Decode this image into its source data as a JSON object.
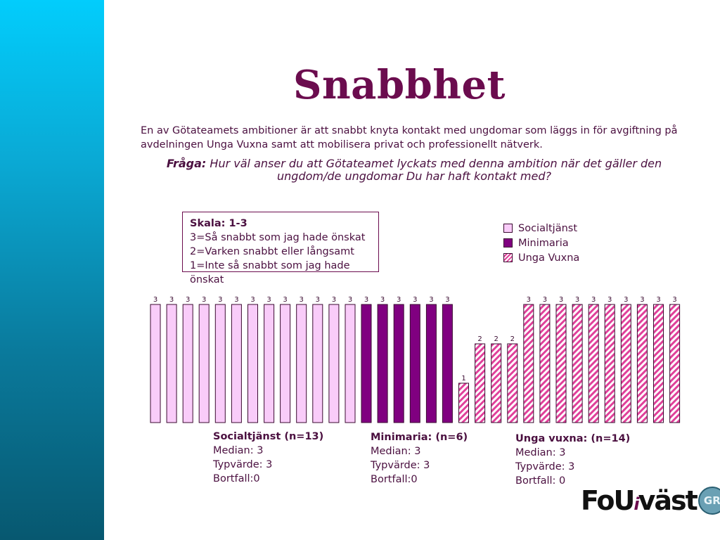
{
  "slide": {
    "title": "Snabbhet",
    "intro": "En av Götateamets ambitioner är att snabbt knyta kontakt med ungdomar som läggs in för avgiftning på avdelningen Unga Vuxna samt att mobilisera privat och professionellt nätverk.",
    "question_label": "Fråga:",
    "question_text": "Hur väl anser du att Götateamet lyckats med denna ambition när det gäller den ungdom/de ungdomar Du har haft kontakt med?"
  },
  "scale_box": {
    "title": "Skala: 1-3",
    "lines": [
      "3=Så snabbt som jag hade önskat",
      "2=Varken snabbt eller långsamt",
      "1=Inte så snabbt som jag hade önskat"
    ]
  },
  "legend": [
    {
      "label": "Socialtjänst",
      "color": "#f9ccf9",
      "pattern": "solid"
    },
    {
      "label": "Minimaria",
      "color": "#800080",
      "pattern": "solid"
    },
    {
      "label": "Unga Vuxna",
      "color": "#e0409a",
      "pattern": "striped"
    }
  ],
  "chart_data": {
    "type": "bar",
    "ylim": [
      0,
      3
    ],
    "grid": false,
    "legend_position": "top-right",
    "series": [
      {
        "name": "Socialtjänst",
        "color": "#f9ccf9",
        "pattern": "solid",
        "values": [
          3,
          3,
          3,
          3,
          3,
          3,
          3,
          3,
          3,
          3,
          3,
          3,
          3
        ]
      },
      {
        "name": "Minimaria",
        "color": "#800080",
        "pattern": "solid",
        "values": [
          3,
          3,
          3,
          3,
          3,
          3
        ]
      },
      {
        "name": "Unga Vuxna",
        "color": "#e0409a",
        "pattern": "striped",
        "values": [
          1,
          2,
          2,
          2,
          3,
          3,
          3,
          3,
          3,
          3,
          3,
          3,
          3,
          3
        ]
      }
    ]
  },
  "groups": [
    {
      "name": "Socialtjänst (n=13)",
      "median": "Median: 3",
      "typvarde": "Typvärde: 3",
      "bortfall": "Bortfall:0"
    },
    {
      "name": "Minimaria: (n=6)",
      "median": "Median: 3",
      "typvarde": "Typvärde: 3",
      "bortfall": "Bortfall:0"
    },
    {
      "name": "Unga vuxna: (n=14)",
      "median": "Median: 3",
      "typvarde": "Typvärde: 3",
      "bortfall": "Bortfall: 0"
    }
  ],
  "logo": {
    "text_main": "FoU",
    "text_i": "i",
    "text_rest": "väst",
    "badge": "GR"
  }
}
